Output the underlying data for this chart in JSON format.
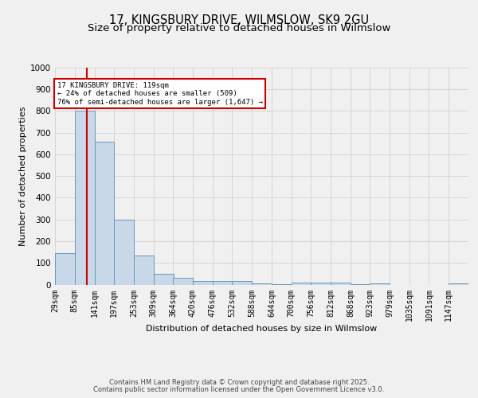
{
  "title1": "17, KINGSBURY DRIVE, WILMSLOW, SK9 2GU",
  "title2": "Size of property relative to detached houses in Wilmslow",
  "xlabel": "Distribution of detached houses by size in Wilmslow",
  "ylabel": "Number of detached properties",
  "bin_edges": [
    29,
    85,
    141,
    197,
    253,
    309,
    364,
    420,
    476,
    532,
    588,
    644,
    700,
    756,
    812,
    868,
    923,
    979,
    1035,
    1091,
    1147
  ],
  "bar_heights": [
    145,
    800,
    660,
    300,
    135,
    50,
    30,
    18,
    18,
    15,
    5,
    2,
    10,
    10,
    8,
    2,
    5,
    0,
    0,
    0,
    5
  ],
  "bar_color": "#c8d8e8",
  "bar_edge_color": "#6699bb",
  "vline_x": 119,
  "vline_color": "#cc0000",
  "annotation_line1": "17 KINGSBURY DRIVE: 119sqm",
  "annotation_line2": "← 24% of detached houses are smaller (509)",
  "annotation_line3": "76% of semi-detached houses are larger (1,647) →",
  "annotation_box_color": "#ffffff",
  "annotation_box_edge": "#cc0000",
  "ylim": [
    0,
    1000
  ],
  "yticks": [
    0,
    100,
    200,
    300,
    400,
    500,
    600,
    700,
    800,
    900,
    1000
  ],
  "footer1": "Contains HM Land Registry data © Crown copyright and database right 2025.",
  "footer2": "Contains public sector information licensed under the Open Government Licence v3.0.",
  "bg_color": "#f0f0f0",
  "plot_bg_color": "#f0f0f0",
  "grid_color": "#d0d0d0",
  "title1_fontsize": 10.5,
  "title2_fontsize": 9.5,
  "tick_fontsize": 7,
  "axis_label_fontsize": 8,
  "footer_fontsize": 6
}
